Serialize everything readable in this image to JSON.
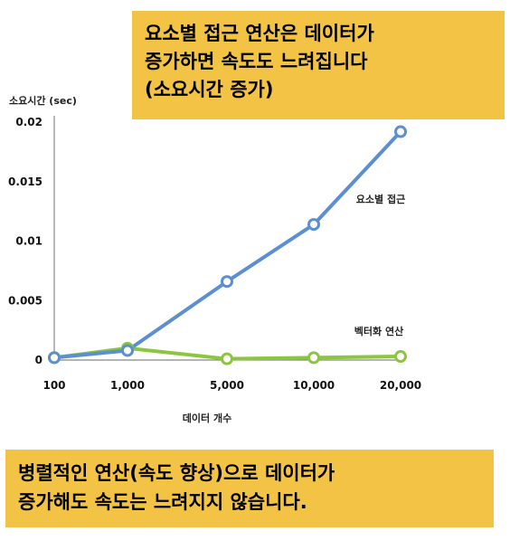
{
  "callouts": {
    "top_lines": [
      "요소별 접근 연산은 데이터가",
      "증가하면 속도도 느려집니다",
      "(소요시간 증가)"
    ],
    "bottom_lines": [
      "병렬적인 연산(속도 향상)으로 데이터가",
      "증가해도 속도는 느려지지 않습니다."
    ],
    "fill_color": "#f2c345"
  },
  "chart_data": {
    "type": "line",
    "categories": [
      "100",
      "1,000",
      "5,000",
      "10,000",
      "20,000"
    ],
    "series": [
      {
        "name": "요소별 접근",
        "values": [
          0.0002,
          0.0008,
          0.0066,
          0.0114,
          0.0192
        ],
        "color": "#5b8fd1"
      },
      {
        "name": "벡터화 연산",
        "values": [
          0.0002,
          0.001,
          0.0001,
          0.0002,
          0.0003
        ],
        "color": "#8cc63e"
      }
    ],
    "ylabel": "소요시간 (sec)",
    "xlabel": "데이터 개수",
    "ylim": [
      0,
      0.02
    ],
    "yticks": [
      "0",
      "0.005",
      "0.01",
      "0.015",
      "0.02"
    ],
    "ytick_values": [
      0,
      0.005,
      0.01,
      0.015,
      0.02
    ],
    "grid": false
  }
}
